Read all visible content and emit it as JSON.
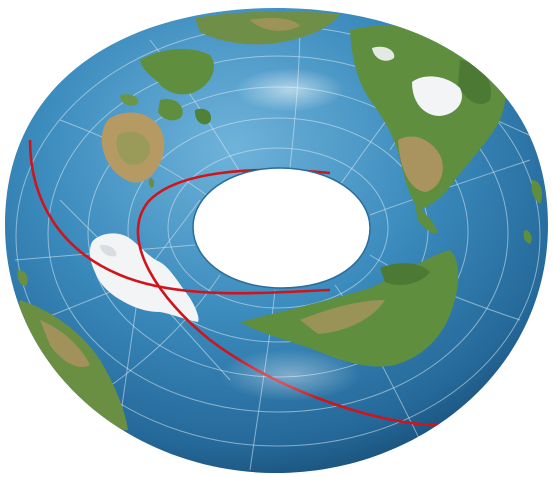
{
  "image": {
    "subject": "torus-shaped-earth-globe",
    "colors": {
      "ocean_light": "#4f9bc9",
      "ocean_mid": "#2e7cae",
      "ocean_dark": "#123f63",
      "land_green": "#5f8f3e",
      "land_tan": "#a9935e",
      "ice": "#f2f4f6",
      "graticule": "#d8e8f2",
      "route_line": "#d0141c",
      "background": "#ffffff"
    }
  }
}
